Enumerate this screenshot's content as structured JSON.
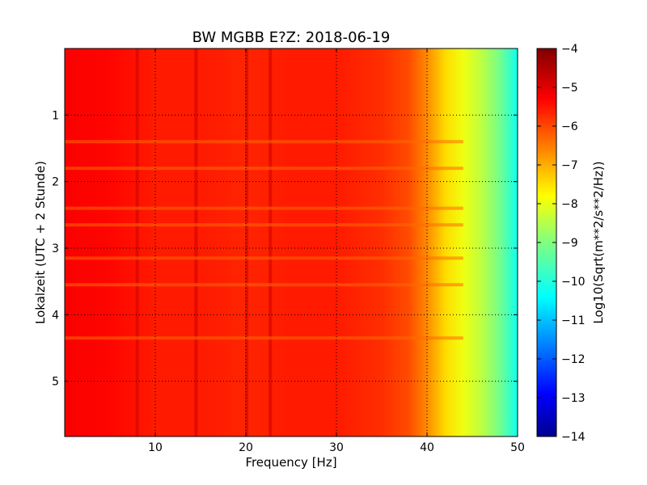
{
  "chart_data": {
    "type": "heatmap",
    "title": "BW MGBB E?Z: 2018-06-19",
    "xlabel": "Frequency [Hz]",
    "ylabel": "Lokalzeit (UTC + 2 Stunde)",
    "xlim": [
      0,
      50
    ],
    "ylim": [
      5.83,
      0
    ],
    "x_ticks": [
      10,
      20,
      30,
      40,
      50
    ],
    "x_tick_labels": [
      "10",
      "20",
      "30",
      "40",
      "50"
    ],
    "y_ticks": [
      1,
      2,
      3,
      4,
      5
    ],
    "y_tick_labels": [
      "1",
      "2",
      "3",
      "4",
      "5"
    ],
    "grid": true,
    "colormap": "jet",
    "colorbar": {
      "label": "Log10(Sqrt(m**2/s**2/Hz))",
      "range": [
        -14,
        -4
      ],
      "ticks": [
        -4,
        -5,
        -6,
        -7,
        -8,
        -9,
        -10,
        -11,
        -12,
        -13,
        -14
      ],
      "tick_labels": [
        "−4",
        "−5",
        "−6",
        "−7",
        "−8",
        "−9",
        "−10",
        "−11",
        "−12",
        "−13",
        "−14"
      ]
    },
    "spectrum_profile": {
      "frequency_hz": [
        0,
        5,
        10,
        15,
        20,
        25,
        30,
        35,
        38,
        40,
        42,
        44,
        46,
        48,
        50
      ],
      "log10_amplitude": [
        -5.2,
        -5.3,
        -5.5,
        -5.5,
        -5.6,
        -5.5,
        -5.5,
        -5.7,
        -6.0,
        -6.6,
        -7.4,
        -7.9,
        -8.4,
        -9.1,
        -10.1
      ]
    },
    "spectral_lines_hz": [
      8.0,
      14.5,
      20.1,
      22.7
    ],
    "broadband_events_hours": [
      1.4,
      1.8,
      2.4,
      2.65,
      3.15,
      3.55,
      4.35
    ]
  }
}
